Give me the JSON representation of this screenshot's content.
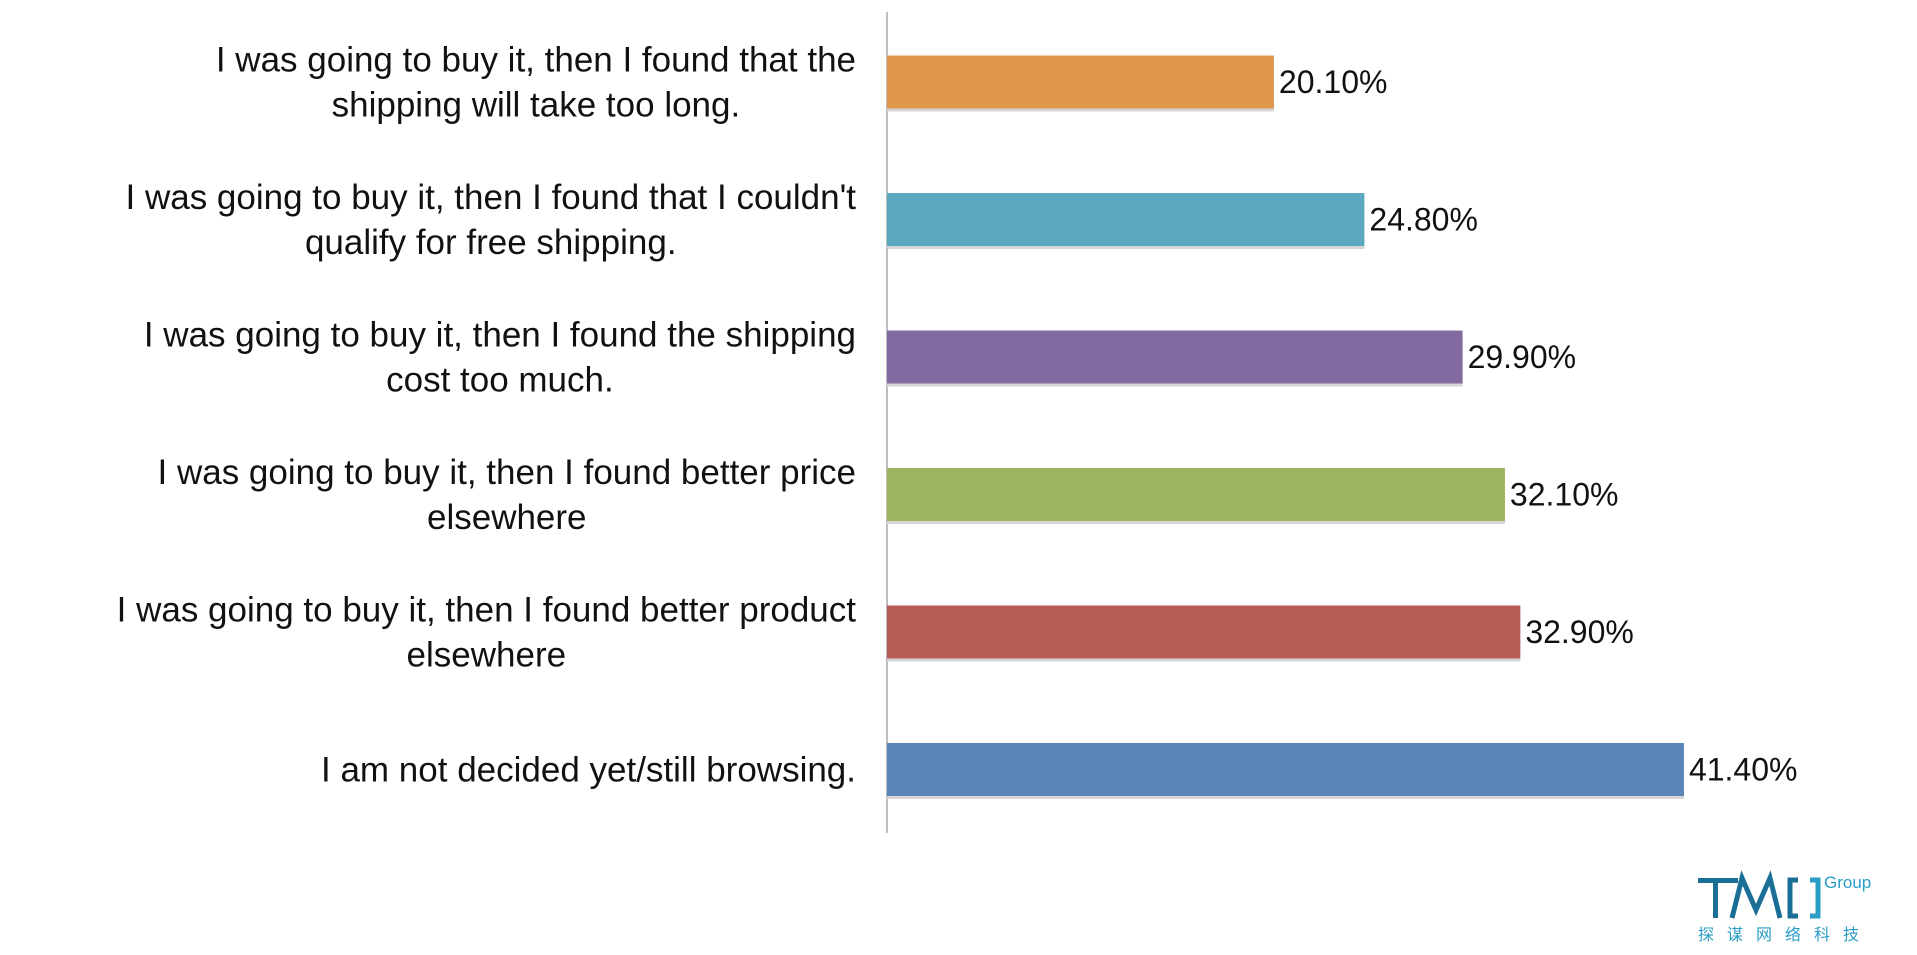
{
  "chart_data": {
    "type": "bar",
    "orientation": "horizontal",
    "categories": [
      [
        "I was going to buy it, then I found that the",
        "shipping will take too long."
      ],
      [
        "I was going to buy it, then I found that I couldn't",
        "qualify for free shipping."
      ],
      [
        "I was going to buy it, then I found the shipping",
        "cost too much."
      ],
      [
        "I was going to buy it, then I found better price",
        "elsewhere"
      ],
      [
        "I was going to buy it, then I found better product",
        "elsewhere"
      ],
      [
        "I am not decided yet/still browsing."
      ]
    ],
    "values": [
      20.1,
      24.8,
      29.9,
      32.1,
      32.9,
      41.4
    ],
    "data_labels": [
      "20.10%",
      "24.80%",
      "29.90%",
      "32.10%",
      "32.90%",
      "41.40%"
    ],
    "colors": [
      "#e1974c",
      "#5aa9bf",
      "#836ba2",
      "#9db560",
      "#b75b55",
      "#5a85b8"
    ],
    "xlim": [
      0,
      60
    ],
    "grid": false,
    "legend": "none"
  },
  "logo": {
    "mark": "TMO",
    "group": "Group",
    "subtitle": "探谋网络科技",
    "color": "#1b6f96"
  }
}
